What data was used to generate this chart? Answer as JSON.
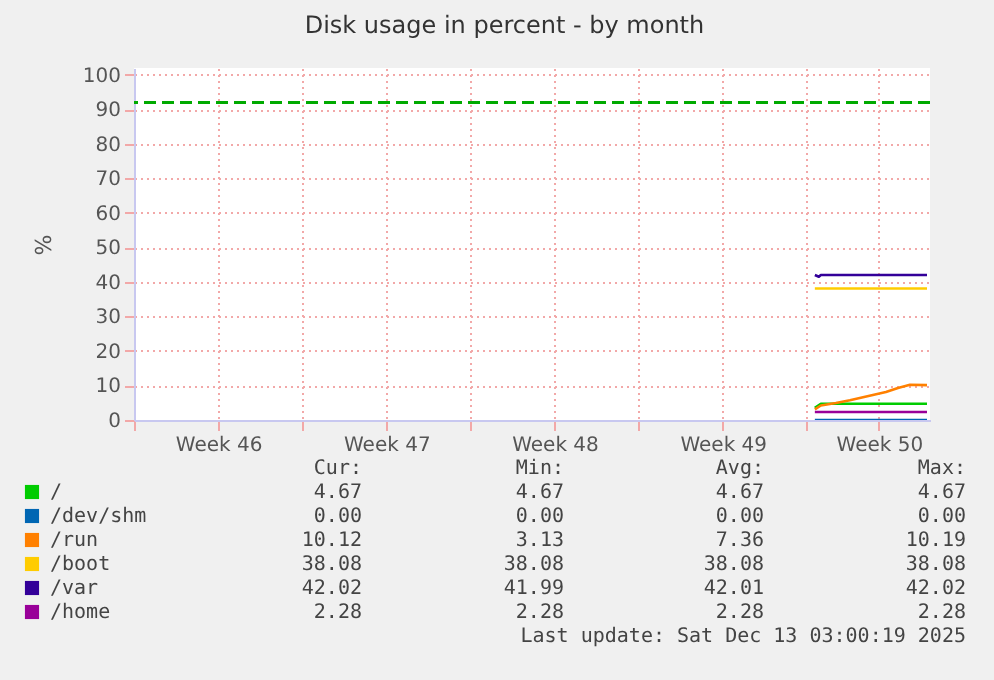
{
  "chart_data": {
    "type": "line",
    "title": "Disk usage in percent - by month",
    "ylabel": "%",
    "xlim": [
      "2025-11-10",
      "2025-12-13T03:00"
    ],
    "xticks": [
      {
        "value": "2025-11-10",
        "label": null
      },
      {
        "value": "2025-11-13T12:00",
        "label": "Week 46"
      },
      {
        "value": "2025-11-17",
        "label": null
      },
      {
        "value": "2025-11-20T12:00",
        "label": "Week 47"
      },
      {
        "value": "2025-11-24",
        "label": null
      },
      {
        "value": "2025-11-27T12:00",
        "label": "Week 48"
      },
      {
        "value": "2025-12-01",
        "label": null
      },
      {
        "value": "2025-12-04T12:00",
        "label": "Week 49"
      },
      {
        "value": "2025-12-08",
        "label": null
      },
      {
        "value": "2025-12-11",
        "label": "Week 50"
      }
    ],
    "ylim": [
      0,
      102
    ],
    "yticks": [
      0,
      10,
      20,
      30,
      40,
      50,
      60,
      70,
      80,
      90,
      100
    ],
    "grid": true,
    "legend": "bottom",
    "series": [
      {
        "name": "/",
        "color": "#00cc00",
        "x": [
          "2025-12-08T08:00",
          "2025-12-08T14:00",
          "2025-12-13T00:00"
        ],
        "values": [
          3.5,
          4.7,
          4.7
        ]
      },
      {
        "name": "/dev/shm",
        "color": "#0066b3",
        "x": [
          "2025-12-08T08:00",
          "2025-12-13T00:00"
        ],
        "values": [
          0,
          0
        ]
      },
      {
        "name": "/run",
        "color": "#ff8000",
        "x": [
          "2025-12-08T08:00",
          "2025-12-08T14:00",
          "2025-12-09T05:00",
          "2025-12-09T19:00",
          "2025-12-10T07:00",
          "2025-12-10T19:00",
          "2025-12-11T07:00",
          "2025-12-11T19:00",
          "2025-12-12T07:00",
          "2025-12-13T00:00"
        ],
        "values": [
          3.1,
          4.2,
          4.9,
          5.7,
          6.5,
          7.3,
          8.1,
          9.3,
          10.2,
          10.1
        ]
      },
      {
        "name": "/boot",
        "color": "#ffcc00",
        "x": [
          "2025-12-08T08:00",
          "2025-12-13T00:00"
        ],
        "values": [
          38.1,
          38.1
        ]
      },
      {
        "name": "/var",
        "color": "#330099",
        "x": [
          "2025-12-08T08:00",
          "2025-12-08T12:00",
          "2025-12-08T14:00",
          "2025-12-13T00:00"
        ],
        "values": [
          42.0,
          41.5,
          42.0,
          42.0
        ]
      },
      {
        "name": "/home",
        "color": "#990099",
        "x": [
          "2025-12-08T08:00",
          "2025-12-13T00:00"
        ],
        "values": [
          2.3,
          2.3
        ]
      }
    ],
    "ref_lines": [
      {
        "axis": "y",
        "value": 92,
        "label": null,
        "color": "#00aa00",
        "line_style": "dashed"
      }
    ],
    "annotations": [
      "Cur:",
      "Min:",
      "Avg:",
      "Max:",
      "4.67",
      "4.67",
      "4.67",
      "4.67",
      "0.00",
      "0.00",
      "0.00",
      "0.00",
      "10.12",
      "3.13",
      "7.36",
      "10.19",
      "38.08",
      "38.08",
      "38.08",
      "38.08",
      "42.02",
      "41.99",
      "42.01",
      "42.02",
      "2.28",
      "2.28",
      "2.28",
      "2.28",
      "Last update: Sat Dec 13 03:00:19 2025"
    ]
  }
}
